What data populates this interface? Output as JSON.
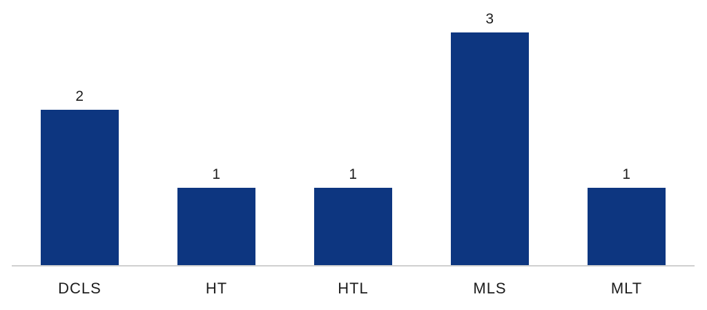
{
  "chart_data": {
    "type": "bar",
    "categories": [
      "DCLS",
      "HT",
      "HTL",
      "MLS",
      "MLT"
    ],
    "values": [
      2,
      1,
      1,
      3,
      1
    ],
    "value_labels": [
      "2",
      "1",
      "1",
      "3",
      "1"
    ],
    "title": "",
    "xlabel": "",
    "ylabel": "",
    "ylim": [
      0,
      3.4
    ],
    "grid": false,
    "legend": false,
    "axes_shown": [
      "x-baseline-only"
    ],
    "colors": {
      "bar": "#0d3680",
      "axis_line": "#cfcfcf",
      "text": "#1c1c1c",
      "background": "#ffffff"
    }
  }
}
